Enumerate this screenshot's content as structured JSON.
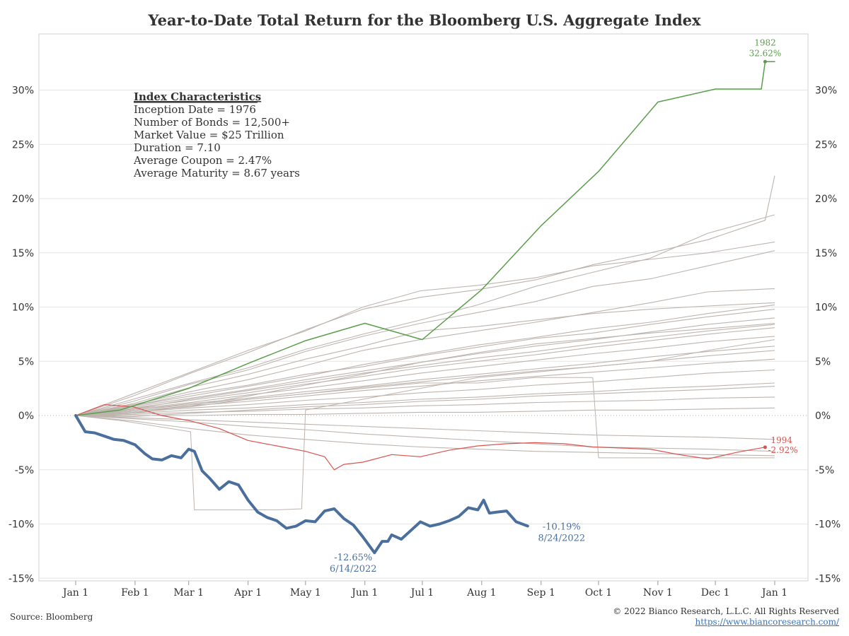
{
  "footer": {
    "source": "Source: Bloomberg",
    "copyright": "© 2022 Bianco Research, L.L.C. All Rights Reserved",
    "link": "https://www.biancoresearch.com/"
  },
  "chart_data": {
    "type": "line",
    "title": "Year-to-Date Total Return for the Bloomberg U.S. Aggregate Index",
    "xlabel": "",
    "ylabel": "",
    "x_ticks": [
      "Jan 1",
      "Feb 1",
      "Mar 1",
      "Apr 1",
      "May 1",
      "Jun 1",
      "Jul 1",
      "Aug 1",
      "Sep 1",
      "Oct 1",
      "Nov 1",
      "Dec 1",
      "Jan 1"
    ],
    "y_ticks": [
      30,
      25,
      20,
      15,
      10,
      5,
      0,
      -5,
      -10,
      -15
    ],
    "y_tick_format": "{v}%",
    "ylim": [
      -15.5,
      35
    ],
    "grid": true,
    "zero_line": "dotted",
    "colors": {
      "highlight_2022": "#4a6f9c",
      "best_1982": "#5a9e4b",
      "worst_1994": "#d9534f",
      "other_years": "#bdb4ae",
      "grid": "#e6e6e6",
      "text": "#333333"
    },
    "info_box": {
      "title": "Index Characteristics",
      "lines": [
        "Inception Date = 1976",
        "Number of Bonds = 12,500+",
        "Market Value = $25 Trillion",
        "Duration = 7.10",
        "Average Coupon = 2.47%",
        "Average Maturity = 8.67 years"
      ]
    },
    "annotations": {
      "y1982": {
        "year": "1982",
        "value": "32.62%"
      },
      "y1994": {
        "year": "1994",
        "value": "-2.92%"
      },
      "y2022_end": {
        "value": "-10.19%",
        "date": "8/24/2022"
      },
      "y2022_low": {
        "value": "-12.65%",
        "date": "6/14/2022"
      }
    },
    "series": [
      {
        "name": "2022",
        "x_day": [
          0,
          5,
          10,
          15,
          20,
          25,
          31,
          36,
          40,
          45,
          50,
          55,
          59,
          62,
          66,
          70,
          75,
          80,
          85,
          90,
          95,
          100,
          105,
          110,
          115,
          120,
          125,
          130,
          135,
          140,
          145,
          150,
          156,
          160,
          163,
          165,
          170,
          175,
          180,
          185,
          190,
          195,
          200,
          205,
          210,
          213,
          216,
          220,
          225,
          230,
          236
        ],
        "y": [
          0,
          -1.5,
          -1.6,
          -1.9,
          -2.2,
          -2.3,
          -2.7,
          -3.5,
          -4.0,
          -4.1,
          -3.7,
          -3.9,
          -3.1,
          -3.3,
          -5.1,
          -5.8,
          -6.8,
          -6.1,
          -6.4,
          -7.8,
          -8.9,
          -9.4,
          -9.7,
          -10.4,
          -10.2,
          -9.7,
          -9.8,
          -8.8,
          -8.6,
          -9.5,
          -10.1,
          -11.2,
          -12.65,
          -11.6,
          -11.6,
          -11.0,
          -11.4,
          -10.6,
          -9.8,
          -10.2,
          -10.0,
          -9.7,
          -9.3,
          -8.5,
          -8.7,
          -7.8,
          -9.0,
          -8.9,
          -8.8,
          -9.8,
          -10.19
        ],
        "stroke_width": 4
      },
      {
        "name": "1982",
        "x_day": [
          0,
          23,
          59,
          90,
          120,
          151,
          181,
          212,
          243,
          273,
          304,
          334,
          358,
          360,
          365
        ],
        "y": [
          0,
          0.5,
          2.5,
          4.8,
          6.9,
          8.5,
          7.0,
          11.6,
          17.5,
          22.5,
          28.9,
          30.1,
          30.1,
          32.62,
          32.62
        ],
        "stroke_width": 1.5
      },
      {
        "name": "1994",
        "x_day": [
          0,
          15,
          30,
          45,
          60,
          75,
          90,
          105,
          120,
          130,
          135,
          140,
          150,
          165,
          180,
          195,
          210,
          225,
          240,
          255,
          270,
          285,
          300,
          315,
          330,
          345,
          360
        ],
        "y": [
          0,
          1.0,
          0.8,
          0.0,
          -0.5,
          -1.2,
          -2.3,
          -2.8,
          -3.3,
          -3.8,
          -5.0,
          -4.5,
          -4.3,
          -3.6,
          -3.8,
          -3.2,
          -2.8,
          -2.6,
          -2.5,
          -2.6,
          -2.9,
          -3.0,
          -3.1,
          -3.6,
          -4.0,
          -3.4,
          -2.92
        ],
        "stroke_width": 1.2
      },
      {
        "name": "",
        "x_day": [
          0,
          30,
          60,
          90,
          120,
          150,
          180,
          210,
          240,
          270,
          300,
          330,
          365
        ],
        "y": [
          0,
          1.5,
          3.0,
          4.4,
          6.1,
          7.5,
          8.8,
          10.2,
          11.9,
          13.2,
          14.5,
          16.8,
          18.5
        ]
      },
      {
        "name": "",
        "x_day": [
          0,
          30,
          60,
          90,
          120,
          150,
          180,
          210,
          240,
          270,
          300,
          330,
          360,
          365
        ],
        "y": [
          0,
          1.8,
          3.9,
          5.8,
          7.9,
          9.8,
          10.9,
          11.6,
          12.5,
          13.9,
          15.0,
          16.2,
          18.0,
          22.1
        ]
      },
      {
        "name": "",
        "x_day": [
          0,
          30,
          60,
          90,
          120,
          150,
          180,
          210,
          240,
          270,
          300,
          330,
          365
        ],
        "y": [
          0,
          2.0,
          4.0,
          6.0,
          7.8,
          10.0,
          11.5,
          12.0,
          12.7,
          13.8,
          14.4,
          15.0,
          16.0
        ]
      },
      {
        "name": "",
        "x_day": [
          0,
          30,
          60,
          90,
          120,
          150,
          180,
          210,
          240,
          270,
          300,
          330,
          365
        ],
        "y": [
          0,
          1.3,
          2.9,
          4.2,
          5.9,
          7.3,
          8.5,
          9.5,
          10.5,
          11.9,
          12.6,
          13.8,
          15.2
        ]
      },
      {
        "name": "",
        "x_day": [
          0,
          30,
          60,
          90,
          120,
          150,
          180,
          210,
          240,
          270,
          300,
          330,
          365
        ],
        "y": [
          0,
          1.0,
          2.2,
          3.3,
          4.6,
          6.0,
          7.0,
          7.8,
          8.6,
          9.5,
          10.4,
          11.4,
          11.7
        ]
      },
      {
        "name": "",
        "x_day": [
          0,
          30,
          60,
          90,
          120,
          150,
          180,
          210,
          240,
          270,
          300,
          330,
          365
        ],
        "y": [
          0,
          0.9,
          1.8,
          2.7,
          3.6,
          4.7,
          5.6,
          6.5,
          7.2,
          8.0,
          8.6,
          9.4,
          10.2
        ]
      },
      {
        "name": "",
        "x_day": [
          0,
          30,
          60,
          90,
          120,
          150,
          180,
          210,
          240,
          270,
          300,
          330,
          365
        ],
        "y": [
          0,
          0.8,
          1.6,
          2.4,
          3.3,
          4.1,
          4.9,
          5.7,
          6.4,
          7.0,
          7.7,
          8.4,
          9.0
        ]
      },
      {
        "name": "",
        "x_day": [
          0,
          30,
          60,
          90,
          120,
          150,
          180,
          210,
          240,
          270,
          300,
          330,
          365
        ],
        "y": [
          0,
          0.7,
          1.4,
          2.1,
          2.9,
          3.6,
          4.4,
          5.0,
          5.6,
          6.3,
          6.9,
          7.5,
          8.1
        ]
      },
      {
        "name": "",
        "x_day": [
          0,
          30,
          60,
          90,
          120,
          150,
          180,
          210,
          240,
          270,
          300,
          330,
          365
        ],
        "y": [
          0,
          0.6,
          1.2,
          1.9,
          2.5,
          3.2,
          3.9,
          4.5,
          5.1,
          5.7,
          6.2,
          6.8,
          7.3
        ]
      },
      {
        "name": "",
        "x_day": [
          0,
          30,
          60,
          90,
          120,
          150,
          180,
          210,
          240,
          270,
          300,
          330,
          365
        ],
        "y": [
          0,
          0.5,
          1.1,
          1.6,
          2.2,
          2.7,
          3.3,
          3.8,
          4.3,
          4.8,
          5.4,
          5.9,
          6.4
        ]
      },
      {
        "name": "",
        "x_day": [
          0,
          30,
          60,
          90,
          120,
          150,
          180,
          210,
          240,
          270,
          300,
          330,
          365
        ],
        "y": [
          0,
          0.4,
          0.9,
          1.3,
          1.8,
          2.3,
          2.7,
          3.2,
          3.6,
          4.0,
          4.4,
          4.8,
          5.2
        ]
      },
      {
        "name": "",
        "x_day": [
          0,
          30,
          60,
          90,
          120,
          150,
          180,
          210,
          240,
          270,
          300,
          330,
          365
        ],
        "y": [
          0,
          0.3,
          0.7,
          1.0,
          1.4,
          1.7,
          2.1,
          2.4,
          2.8,
          3.1,
          3.5,
          3.9,
          4.2
        ]
      },
      {
        "name": "",
        "x_day": [
          0,
          30,
          60,
          90,
          120,
          150,
          180,
          210,
          240,
          270,
          300,
          330,
          365
        ],
        "y": [
          0,
          0.2,
          0.5,
          0.7,
          1.0,
          1.2,
          1.5,
          1.7,
          2.0,
          2.2,
          2.5,
          2.7,
          3.0
        ]
      },
      {
        "name": "",
        "x_day": [
          0,
          30,
          60,
          90,
          120,
          150,
          180,
          210,
          240,
          270,
          300,
          330,
          365
        ],
        "y": [
          0,
          0.1,
          0.3,
          0.4,
          0.6,
          0.7,
          0.9,
          1.0,
          1.2,
          1.3,
          1.4,
          1.6,
          1.7
        ]
      },
      {
        "name": "",
        "x_day": [
          0,
          30,
          60,
          90,
          120,
          150,
          180,
          210,
          240,
          270,
          300,
          330,
          365
        ],
        "y": [
          0,
          0.0,
          0.0,
          0.1,
          0.1,
          0.2,
          0.3,
          0.3,
          0.4,
          0.5,
          0.5,
          0.6,
          0.7
        ]
      },
      {
        "name": "",
        "x_day": [
          0,
          30,
          60,
          90,
          120,
          150,
          180,
          210,
          240,
          270,
          300,
          330,
          365
        ],
        "y": [
          0,
          -0.2,
          -0.4,
          -0.6,
          -0.8,
          -1.0,
          -1.2,
          -1.4,
          -1.6,
          -1.8,
          -1.9,
          -2.0,
          -2.2
        ]
      },
      {
        "name": "",
        "x_day": [
          0,
          30,
          60,
          90,
          120,
          150,
          180,
          210,
          240,
          270,
          300,
          330,
          365
        ],
        "y": [
          0,
          -0.3,
          -0.6,
          -1.0,
          -1.3,
          -1.7,
          -2.0,
          -2.3,
          -2.6,
          -2.9,
          -3.0,
          -3.1,
          -3.3
        ]
      },
      {
        "name": "",
        "x_day": [
          0,
          30,
          60,
          90,
          120,
          150,
          180,
          210,
          240,
          270,
          300,
          330,
          365
        ],
        "y": [
          0,
          0.9,
          2.0,
          2.8,
          3.8,
          4.5,
          5.5,
          6.3,
          7.1,
          7.6,
          8.4,
          9.1,
          9.8
        ]
      },
      {
        "name": "",
        "x_day": [
          0,
          30,
          60,
          90,
          120,
          150,
          180,
          210,
          240,
          270,
          300,
          330,
          365
        ],
        "y": [
          0,
          0.6,
          1.5,
          2.3,
          3.1,
          3.9,
          4.6,
          5.3,
          5.9,
          6.6,
          7.2,
          7.8,
          8.4
        ]
      },
      {
        "name": "",
        "x_day": [
          0,
          30,
          60,
          90,
          120,
          150,
          180,
          210,
          240,
          270,
          300,
          330,
          365
        ],
        "y": [
          0,
          0.4,
          0.8,
          1.5,
          2.0,
          2.6,
          3.1,
          3.6,
          4.1,
          4.5,
          5.0,
          5.5,
          6.0
        ]
      },
      {
        "name": "",
        "x_day": [
          0,
          30,
          60,
          90,
          120,
          150,
          180,
          210,
          240,
          270,
          300,
          330,
          365
        ],
        "y": [
          0,
          -0.1,
          0.2,
          0.5,
          0.8,
          1.0,
          1.3,
          1.5,
          1.8,
          2.0,
          2.2,
          2.4,
          2.7
        ]
      },
      {
        "name": "",
        "x_day": [
          0,
          30,
          60,
          90,
          120,
          150,
          180,
          210,
          240,
          270,
          300,
          330,
          365
        ],
        "y": [
          0,
          -0.5,
          -1.2,
          -1.8,
          -2.2,
          -2.6,
          -2.9,
          -3.1,
          -3.3,
          -3.4,
          -3.5,
          -3.6,
          -3.7
        ]
      },
      {
        "name": "",
        "x_day": [
          0,
          30,
          60,
          90,
          120,
          150,
          180,
          210,
          240,
          270,
          300,
          330,
          365
        ],
        "y": [
          0,
          1.1,
          2.6,
          3.8,
          5.2,
          6.4,
          7.8,
          8.2,
          8.8,
          9.4,
          9.8,
          10.1,
          10.4
        ]
      },
      {
        "name": "",
        "x_day": [
          0,
          30,
          60,
          90,
          120,
          150,
          180,
          210,
          240,
          270,
          300,
          330,
          365
        ],
        "y": [
          0,
          0.2,
          0.9,
          1.8,
          2.8,
          3.8,
          4.9,
          5.8,
          6.6,
          7.1,
          7.6,
          8.0,
          8.5
        ]
      },
      {
        "name": "",
        "x_day": [
          0,
          25,
          60,
          62,
          90,
          105,
          118,
          120,
          150,
          180,
          210,
          240,
          270,
          300,
          330,
          365
        ],
        "y": [
          0,
          -0.5,
          -1.5,
          -8.7,
          -8.7,
          -8.7,
          -8.6,
          0.5,
          1.5,
          2.5,
          3.5,
          4.0,
          4.5,
          5.0,
          6.0,
          7.0
        ],
        "stroke_width": 1
      },
      {
        "name": "",
        "x_day": [
          0,
          30,
          60,
          90,
          120,
          150,
          180,
          210,
          240,
          270,
          273,
          300,
          330,
          365
        ],
        "y": [
          0,
          0.5,
          1.0,
          1.5,
          2.0,
          2.5,
          3.0,
          3.0,
          3.5,
          3.5,
          -3.9,
          -3.9,
          -3.9,
          -3.9
        ],
        "stroke_width": 1
      }
    ]
  }
}
